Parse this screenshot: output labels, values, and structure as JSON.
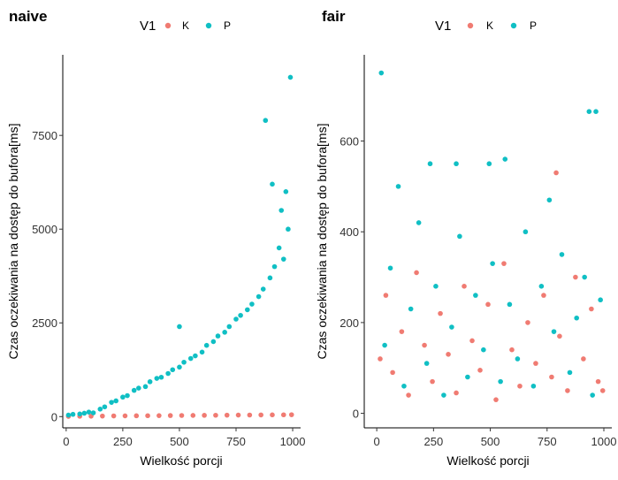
{
  "colors": {
    "K": "#F07B72",
    "P": "#10BFC4",
    "axis": "#000000",
    "tick_label": "#333333"
  },
  "chart_data": [
    {
      "type": "scatter",
      "title": "naive",
      "xlabel": "Wielkość porcji",
      "ylabel": "Czas oczekiwania na dostęp do bufora[ms]",
      "legend_title": "V1",
      "legend_position": "top",
      "grid": false,
      "xlim": [
        -15,
        1035
      ],
      "ylim": [
        -300,
        9650
      ],
      "x_ticks": [
        0,
        250,
        500,
        750,
        1000
      ],
      "x_tick_labels": [
        "0",
        "250",
        "500",
        "750",
        "1000"
      ],
      "y_ticks": [
        0,
        2500,
        5000,
        7500
      ],
      "y_tick_labels": [
        "0",
        "2500",
        "5000",
        "7500"
      ],
      "series": [
        {
          "name": "K",
          "color": "#F07B72",
          "points": [
            [
              10,
              5
            ],
            [
              60,
              10
            ],
            [
              110,
              12
            ],
            [
              160,
              15
            ],
            [
              210,
              18
            ],
            [
              260,
              20
            ],
            [
              310,
              22
            ],
            [
              360,
              24
            ],
            [
              410,
              26
            ],
            [
              460,
              28
            ],
            [
              510,
              30
            ],
            [
              560,
              32
            ],
            [
              610,
              34
            ],
            [
              660,
              36
            ],
            [
              710,
              38
            ],
            [
              760,
              40
            ],
            [
              810,
              42
            ],
            [
              860,
              44
            ],
            [
              910,
              46
            ],
            [
              960,
              48
            ],
            [
              995,
              50
            ]
          ]
        },
        {
          "name": "P",
          "color": "#10BFC4",
          "points": [
            [
              10,
              40
            ],
            [
              30,
              60
            ],
            [
              60,
              70
            ],
            [
              80,
              90
            ],
            [
              100,
              120
            ],
            [
              120,
              100
            ],
            [
              150,
              200
            ],
            [
              170,
              260
            ],
            [
              200,
              380
            ],
            [
              220,
              420
            ],
            [
              250,
              520
            ],
            [
              270,
              560
            ],
            [
              300,
              700
            ],
            [
              320,
              760
            ],
            [
              350,
              800
            ],
            [
              370,
              930
            ],
            [
              400,
              1020
            ],
            [
              420,
              1050
            ],
            [
              450,
              1150
            ],
            [
              470,
              1250
            ],
            [
              500,
              1320
            ],
            [
              500,
              2400
            ],
            [
              520,
              1450
            ],
            [
              550,
              1550
            ],
            [
              570,
              1620
            ],
            [
              600,
              1720
            ],
            [
              620,
              1900
            ],
            [
              650,
              2000
            ],
            [
              670,
              2150
            ],
            [
              700,
              2250
            ],
            [
              720,
              2400
            ],
            [
              750,
              2600
            ],
            [
              770,
              2700
            ],
            [
              800,
              2850
            ],
            [
              820,
              3000
            ],
            [
              850,
              3200
            ],
            [
              870,
              3400
            ],
            [
              880,
              7900
            ],
            [
              900,
              3700
            ],
            [
              910,
              6200
            ],
            [
              920,
              4000
            ],
            [
              940,
              4500
            ],
            [
              950,
              5500
            ],
            [
              960,
              4200
            ],
            [
              970,
              6000
            ],
            [
              980,
              5000
            ],
            [
              990,
              9050
            ]
          ]
        }
      ]
    },
    {
      "type": "scatter",
      "title": "fair",
      "xlabel": "Wielkość porcji",
      "ylabel": "Czas oczekiwania na dostęp do bufora[ms]",
      "legend_title": "V1",
      "legend_position": "top",
      "grid": false,
      "xlim": [
        -55,
        1035
      ],
      "ylim": [
        -32,
        790
      ],
      "x_ticks": [
        0,
        250,
        500,
        750,
        1000
      ],
      "x_tick_labels": [
        "0",
        "250",
        "500",
        "750",
        "1000"
      ],
      "y_ticks": [
        0,
        200,
        400,
        600
      ],
      "y_tick_labels": [
        "0",
        "200",
        "400",
        "600"
      ],
      "series": [
        {
          "name": "K",
          "color": "#F07B72",
          "points": [
            [
              15,
              120
            ],
            [
              40,
              260
            ],
            [
              70,
              90
            ],
            [
              110,
              180
            ],
            [
              140,
              40
            ],
            [
              175,
              310
            ],
            [
              210,
              150
            ],
            [
              245,
              70
            ],
            [
              280,
              220
            ],
            [
              315,
              130
            ],
            [
              350,
              45
            ],
            [
              385,
              280
            ],
            [
              420,
              160
            ],
            [
              455,
              95
            ],
            [
              490,
              240
            ],
            [
              525,
              30
            ],
            [
              560,
              330
            ],
            [
              595,
              140
            ],
            [
              630,
              60
            ],
            [
              665,
              200
            ],
            [
              700,
              110
            ],
            [
              735,
              260
            ],
            [
              770,
              80
            ],
            [
              790,
              530
            ],
            [
              805,
              170
            ],
            [
              840,
              50
            ],
            [
              875,
              300
            ],
            [
              910,
              120
            ],
            [
              945,
              230
            ],
            [
              975,
              70
            ],
            [
              995,
              50
            ]
          ]
        },
        {
          "name": "P",
          "color": "#10BFC4",
          "points": [
            [
              20,
              750
            ],
            [
              35,
              150
            ],
            [
              60,
              320
            ],
            [
              95,
              500
            ],
            [
              120,
              60
            ],
            [
              150,
              230
            ],
            [
              185,
              420
            ],
            [
              220,
              110
            ],
            [
              235,
              550
            ],
            [
              260,
              280
            ],
            [
              295,
              40
            ],
            [
              330,
              190
            ],
            [
              350,
              550
            ],
            [
              365,
              390
            ],
            [
              400,
              80
            ],
            [
              435,
              260
            ],
            [
              470,
              140
            ],
            [
              495,
              550
            ],
            [
              510,
              330
            ],
            [
              545,
              70
            ],
            [
              565,
              560
            ],
            [
              585,
              240
            ],
            [
              620,
              120
            ],
            [
              655,
              400
            ],
            [
              690,
              60
            ],
            [
              725,
              280
            ],
            [
              760,
              470
            ],
            [
              780,
              180
            ],
            [
              815,
              350
            ],
            [
              850,
              90
            ],
            [
              880,
              210
            ],
            [
              915,
              300
            ],
            [
              935,
              665
            ],
            [
              950,
              40
            ],
            [
              965,
              665
            ],
            [
              985,
              250
            ]
          ]
        }
      ]
    }
  ]
}
